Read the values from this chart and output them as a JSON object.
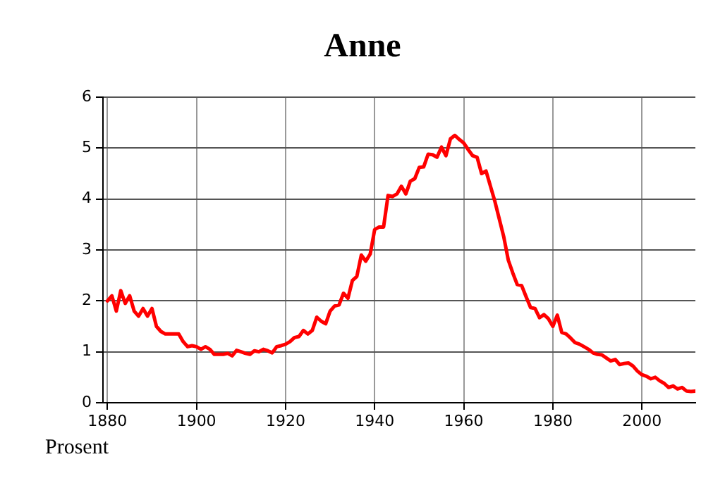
{
  "chart_data": {
    "type": "line",
    "title": "Anne",
    "annotations": [
      "Prosent"
    ],
    "x": [
      1880,
      1881,
      1882,
      1883,
      1884,
      1885,
      1886,
      1887,
      1888,
      1889,
      1890,
      1891,
      1892,
      1893,
      1894,
      1895,
      1896,
      1897,
      1898,
      1899,
      1900,
      1901,
      1902,
      1903,
      1904,
      1905,
      1906,
      1907,
      1908,
      1909,
      1910,
      1911,
      1912,
      1913,
      1914,
      1915,
      1916,
      1917,
      1918,
      1919,
      1920,
      1921,
      1922,
      1923,
      1924,
      1925,
      1926,
      1927,
      1928,
      1929,
      1930,
      1931,
      1932,
      1933,
      1934,
      1935,
      1936,
      1937,
      1938,
      1939,
      1940,
      1941,
      1942,
      1943,
      1944,
      1945,
      1946,
      1947,
      1948,
      1949,
      1950,
      1951,
      1952,
      1953,
      1954,
      1955,
      1956,
      1957,
      1958,
      1959,
      1960,
      1961,
      1962,
      1963,
      1964,
      1965,
      1966,
      1967,
      1968,
      1969,
      1970,
      1971,
      1972,
      1973,
      1974,
      1975,
      1976,
      1977,
      1978,
      1979,
      1980,
      1981,
      1982,
      1983,
      1984,
      1985,
      1986,
      1987,
      1988,
      1989,
      1990,
      1991,
      1992,
      1993,
      1994,
      1995,
      1996,
      1997,
      1998,
      1999,
      2000,
      2001,
      2002,
      2003,
      2004,
      2005,
      2006,
      2007,
      2008,
      2009,
      2010,
      2011,
      2012
    ],
    "series": [
      {
        "color": "#ff0000",
        "values": [
          2.0,
          2.1,
          1.8,
          2.2,
          1.95,
          2.1,
          1.8,
          1.7,
          1.85,
          1.7,
          1.85,
          1.5,
          1.4,
          1.35,
          1.35,
          1.35,
          1.35,
          1.2,
          1.1,
          1.12,
          1.1,
          1.05,
          1.1,
          1.05,
          0.95,
          0.95,
          0.95,
          0.97,
          0.92,
          1.03,
          1.0,
          0.97,
          0.95,
          1.02,
          1.0,
          1.05,
          1.02,
          0.98,
          1.1,
          1.12,
          1.15,
          1.2,
          1.28,
          1.3,
          1.42,
          1.35,
          1.42,
          1.68,
          1.6,
          1.55,
          1.8,
          1.9,
          1.92,
          2.15,
          2.05,
          2.4,
          2.48,
          2.9,
          2.78,
          2.92,
          3.4,
          3.45,
          3.45,
          4.07,
          4.05,
          4.1,
          4.25,
          4.1,
          4.35,
          4.4,
          4.62,
          4.63,
          4.88,
          4.87,
          4.82,
          5.02,
          4.85,
          5.18,
          5.25,
          5.17,
          5.1,
          4.97,
          4.85,
          4.82,
          4.5,
          4.55,
          4.25,
          3.95,
          3.6,
          3.25,
          2.8,
          2.55,
          2.32,
          2.3,
          2.08,
          1.87,
          1.85,
          1.67,
          1.73,
          1.65,
          1.5,
          1.72,
          1.38,
          1.35,
          1.27,
          1.18,
          1.15,
          1.1,
          1.05,
          0.98,
          0.95,
          0.94,
          0.88,
          0.82,
          0.85,
          0.75,
          0.77,
          0.78,
          0.72,
          0.62,
          0.55,
          0.52,
          0.47,
          0.5,
          0.43,
          0.38,
          0.3,
          0.33,
          0.27,
          0.3,
          0.23,
          0.22,
          0.23
        ]
      }
    ],
    "xlim": [
      1879,
      2012
    ],
    "xticks": [
      1880,
      1900,
      1920,
      1940,
      1960,
      1980,
      2000
    ],
    "ylim": [
      0,
      6
    ],
    "yticks": [
      0,
      1,
      2,
      3,
      4,
      5,
      6
    ],
    "grid": true,
    "legend": false,
    "marker": "none",
    "line_style": "solid"
  }
}
